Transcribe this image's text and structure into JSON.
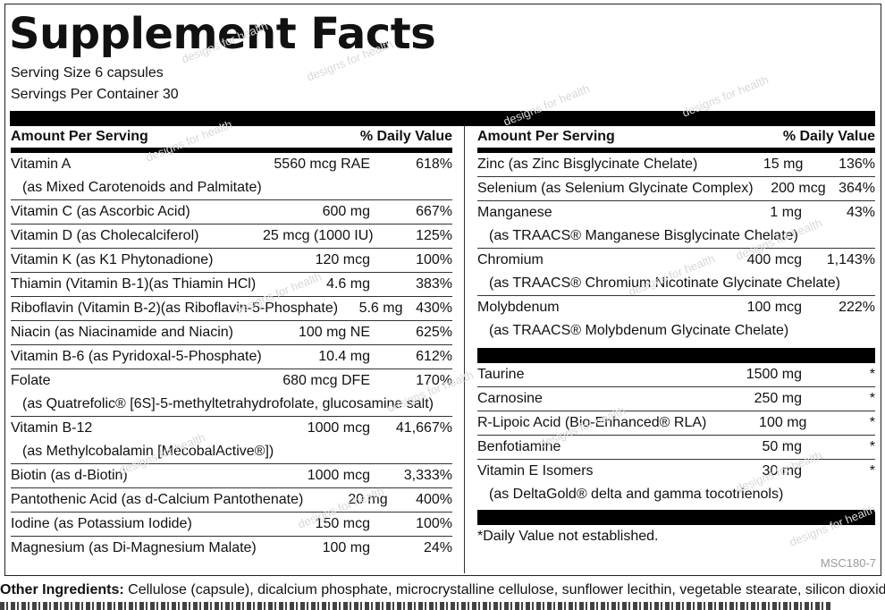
{
  "title": "Supplement Facts",
  "serving_size": "Serving Size 6 capsules",
  "servings_per_container": "Servings Per Container 30",
  "header": {
    "amount": "Amount Per Serving",
    "dv": "% Daily Value"
  },
  "left_rows": [
    {
      "name": "Vitamin A",
      "amount": "5560 mcg RAE",
      "dv": "618%",
      "sub": "(as Mixed Carotenoids and Palmitate)"
    },
    {
      "name": "Vitamin C (as Ascorbic Acid)",
      "amount": "600 mg",
      "dv": "667%"
    },
    {
      "name": "Vitamin D (as Cholecalciferol)",
      "amount": "25 mcg (1000 IU)",
      "dv": "125%"
    },
    {
      "name": "Vitamin K (as K1 Phytonadione)",
      "amount": "120 mcg",
      "dv": "100%"
    },
    {
      "name": "Thiamin (Vitamin B-1)(as Thiamin HCl)",
      "amount": "4.6 mg",
      "dv": "383%"
    },
    {
      "name": "Riboflavin (Vitamin B-2)(as Riboflavin-5-Phosphate)",
      "amount": "5.6 mg",
      "dv": "430%"
    },
    {
      "name": "Niacin (as Niacinamide and Niacin)",
      "amount": "100 mg NE",
      "dv": "625%"
    },
    {
      "name": "Vitamin B-6 (as Pyridoxal-5-Phosphate)",
      "amount": "10.4 mg",
      "dv": "612%"
    },
    {
      "name": "Folate",
      "amount": "680 mcg DFE",
      "dv": "170%",
      "sub": "(as Quatrefolic® [6S]-5-methyltetrahydrofolate, glucosamine salt)"
    },
    {
      "name": "Vitamin B-12",
      "amount": "1000 mcg",
      "dv": "41,667%",
      "sub": "(as Methylcobalamin [MecobalActive®])"
    },
    {
      "name": "Biotin (as d-Biotin)",
      "amount": "1000 mcg",
      "dv": "3,333%"
    },
    {
      "name": "Pantothenic Acid (as d-Calcium Pantothenate)",
      "amount": "20 mg",
      "dv": "400%"
    },
    {
      "name": "Iodine (as Potassium Iodide)",
      "amount": "150 mcg",
      "dv": "100%"
    },
    {
      "name": "Magnesium (as Di-Magnesium Malate)",
      "amount": "100 mg",
      "dv": "24%"
    }
  ],
  "right_rows": [
    {
      "name": "Zinc (as Zinc Bisglycinate Chelate)",
      "amount": "15 mg",
      "dv": "136%"
    },
    {
      "name": "Selenium (as Selenium Glycinate Complex)",
      "amount": "200 mcg",
      "dv": "364%"
    },
    {
      "name": "Manganese",
      "amount": "1 mg",
      "dv": "43%",
      "sub": "(as TRAACS® Manganese Bisglycinate Chelate)"
    },
    {
      "name": "Chromium",
      "amount": "400 mcg",
      "dv": "1,143%",
      "sub": "(as TRAACS® Chromium Nicotinate Glycinate Chelate)"
    },
    {
      "name": "Molybdenum",
      "amount": "100 mcg",
      "dv": "222%",
      "sub": "(as TRAACS® Molybdenum Glycinate Chelate)"
    }
  ],
  "right_rows_2": [
    {
      "name": "Taurine",
      "amount": "1500 mg",
      "dv": "*"
    },
    {
      "name": "Carnosine",
      "amount": "250 mg",
      "dv": "*"
    },
    {
      "name": "R-Lipoic Acid (Bio-Enhanced® RLA)",
      "amount": "100 mg",
      "dv": "*"
    },
    {
      "name": "Benfotiamine",
      "amount": "50 mg",
      "dv": "*"
    },
    {
      "name": "Vitamin E Isomers",
      "amount": "30 mg",
      "dv": "*",
      "sub": "(as DeltaGold® delta and gamma tocotrienols)"
    }
  ],
  "footnote": "*Daily Value not established.",
  "code": "MSC180-7",
  "other_ingredients_label": "Other Ingredients:",
  "other_ingredients_text": " Cellulose (capsule), dicalcium phosphate, microcrystalline cellulose, sunflower lecithin, vegetable stearate, silicon dioxide.",
  "watermark": "designs for health"
}
